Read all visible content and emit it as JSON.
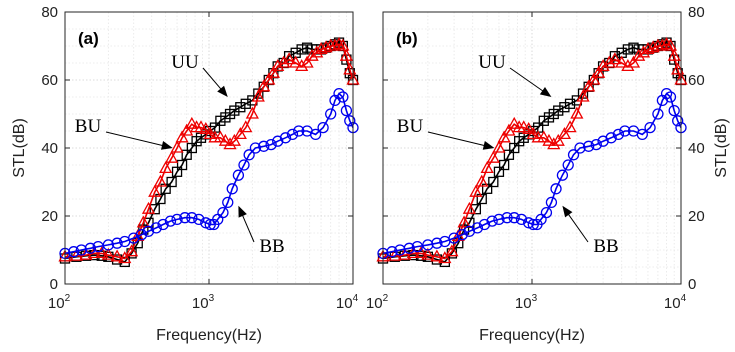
{
  "chart_data": {
    "type": "line",
    "x_scale": "log",
    "xlim": [
      100,
      10000
    ],
    "ylim": [
      0,
      80
    ],
    "grid": true,
    "xlabel": "Frequency(Hz)",
    "ylabel": "STL(dB)",
    "x_ticks": [
      {
        "base": "10",
        "exp": "2"
      },
      {
        "base": "10",
        "exp": "3"
      },
      {
        "base": "10",
        "exp": "4"
      }
    ],
    "y_ticks": [
      "0",
      "20",
      "40",
      "60",
      "80"
    ],
    "colors": {
      "BB": "#0000ee",
      "BU": "#ee0000",
      "UU": "#000000"
    },
    "panels": [
      {
        "label": "(a)",
        "ylabel_side": "left",
        "annotations": [
          {
            "text": "UU",
            "series": "UU",
            "point_at": [
              1350,
              55
            ]
          },
          {
            "text": "BU",
            "series": "BU",
            "point_at": [
              560,
              40
            ]
          },
          {
            "text": "BB",
            "series": "BB",
            "point_at": [
              1600,
              23
            ]
          }
        ],
        "series": [
          {
            "name": "UU",
            "marker": "square",
            "x": [
              100,
              120,
              140,
              160,
              180,
              200,
              230,
              260,
              290,
              320,
              350,
              380,
              420,
              460,
              500,
              550,
              600,
              650,
              700,
              760,
              820,
              880,
              950,
              1020,
              1100,
              1200,
              1300,
              1400,
              1500,
              1650,
              1800,
              2000,
              2200,
              2400,
              2600,
              2800,
              3000,
              3300,
              3600,
              4000,
              4400,
              4800,
              5200,
              5600,
              6000,
              6500,
              7000,
              7500,
              8000,
              8500,
              9000,
              9500,
              10000
            ],
            "y": [
              7.5,
              8,
              8.3,
              8.5,
              8.3,
              8,
              7.2,
              6.5,
              9,
              12,
              16,
              18,
              22,
              25,
              28,
              30,
              33,
              35,
              38,
              40,
              42,
              43,
              44,
              45,
              46,
              48,
              49,
              50,
              51,
              52,
              53,
              54,
              56,
              58,
              60,
              62,
              64,
              65,
              67,
              68,
              69,
              69.5,
              69,
              69,
              69,
              69.5,
              70,
              70.5,
              71,
              70,
              66,
              62,
              60
            ]
          },
          {
            "name": "BU",
            "marker": "triangle",
            "x": [
              100,
              120,
              140,
              160,
              180,
              200,
              230,
              260,
              290,
              320,
              350,
              380,
              420,
              460,
              500,
              550,
              600,
              650,
              700,
              760,
              820,
              880,
              950,
              1020,
              1100,
              1200,
              1300,
              1400,
              1500,
              1650,
              1800,
              2000,
              2200,
              2400,
              2600,
              2800,
              3000,
              3300,
              3600,
              4000,
              4400,
              4800,
              5200,
              5600,
              6000,
              6500,
              7000,
              7500,
              8000,
              8500,
              9000,
              9500,
              10000
            ],
            "y": [
              8,
              8.2,
              8.5,
              9,
              9,
              8.5,
              8,
              7.5,
              9.5,
              14,
              18,
              22,
              27,
              30,
              34,
              37,
              40,
              43,
              45,
              47,
              46,
              46,
              45.5,
              44,
              43,
              43,
              42,
              41,
              42,
              44,
              46,
              50,
              55,
              58,
              60,
              62,
              64,
              65,
              66,
              65,
              64,
              65,
              67,
              68,
              69,
              69.5,
              70,
              70,
              70.5,
              70,
              67,
              63,
              60
            ]
          },
          {
            "name": "BB",
            "marker": "circle",
            "x": [
              100,
              115,
              130,
              150,
              170,
              200,
              230,
              260,
              300,
              340,
              380,
              430,
              480,
              540,
              600,
              680,
              760,
              850,
              950,
              1020,
              1080,
              1150,
              1250,
              1350,
              1450,
              1600,
              1750,
              1900,
              2100,
              2400,
              2700,
              3000,
              3400,
              3800,
              4200,
              4800,
              5500,
              6200,
              7000,
              7500,
              8000,
              8500,
              9000,
              9500,
              10000
            ],
            "y": [
              9,
              9.5,
              10,
              10.5,
              11,
              11.5,
              12,
              12.5,
              13.5,
              14.5,
              15.5,
              16.5,
              17.5,
              18.5,
              19,
              19.5,
              19.5,
              19,
              18,
              17.5,
              17.5,
              19,
              21,
              24,
              28,
              32,
              35,
              38,
              40,
              40.5,
              41,
              42,
              43,
              44,
              45,
              45,
              44,
              46,
              50,
              54,
              56,
              55,
              51,
              48,
              46
            ]
          }
        ]
      },
      {
        "label": "(b)",
        "ylabel_side": "right",
        "annotations": [
          {
            "text": "UU",
            "series": "UU",
            "point_at": [
              1350,
              55
            ]
          },
          {
            "text": "BU",
            "series": "BU",
            "point_at": [
              560,
              40
            ]
          },
          {
            "text": "BB",
            "series": "BB",
            "point_at": [
              1600,
              23
            ]
          }
        ],
        "series": [
          {
            "name": "UU",
            "marker": "square",
            "x": [
              100,
              120,
              140,
              160,
              180,
              200,
              230,
              260,
              290,
              320,
              350,
              380,
              420,
              460,
              500,
              550,
              600,
              650,
              700,
              760,
              820,
              880,
              950,
              1020,
              1100,
              1200,
              1300,
              1400,
              1500,
              1650,
              1800,
              2000,
              2200,
              2400,
              2600,
              2800,
              3000,
              3300,
              3600,
              4000,
              4400,
              4800,
              5200,
              5600,
              6000,
              6500,
              7000,
              7500,
              8000,
              8500,
              9000,
              9500,
              10000
            ],
            "y": [
              7.5,
              8,
              8.3,
              8.5,
              8.3,
              8,
              7.2,
              6.5,
              9,
              12,
              16,
              18,
              22,
              25,
              28,
              30,
              33,
              35,
              38,
              40,
              42,
              43,
              44,
              45,
              46,
              48,
              49,
              50,
              51,
              52,
              53,
              54,
              56,
              58,
              60,
              62,
              64,
              65,
              67,
              68,
              69,
              69.5,
              69,
              69,
              69,
              69.5,
              70,
              70.5,
              71,
              70,
              66,
              62,
              60
            ]
          },
          {
            "name": "BU",
            "marker": "triangle",
            "x": [
              100,
              120,
              140,
              160,
              180,
              200,
              230,
              260,
              290,
              320,
              350,
              380,
              420,
              460,
              500,
              550,
              600,
              650,
              700,
              760,
              820,
              880,
              950,
              1020,
              1100,
              1200,
              1300,
              1400,
              1500,
              1650,
              1800,
              2000,
              2200,
              2400,
              2600,
              2800,
              3000,
              3300,
              3600,
              4000,
              4400,
              4800,
              5200,
              5600,
              6000,
              6500,
              7000,
              7500,
              8000,
              8500,
              9000,
              9500,
              10000
            ],
            "y": [
              8,
              8.2,
              8.5,
              9,
              9,
              8.5,
              8,
              7.5,
              9.5,
              14,
              18,
              22,
              27,
              30,
              34,
              37,
              40,
              43,
              45,
              47,
              46,
              46,
              45.5,
              44,
              43,
              43,
              42,
              41,
              42,
              44,
              46,
              50,
              55,
              58,
              60,
              62,
              64,
              65,
              66,
              65,
              64,
              65,
              67,
              68,
              69,
              69.5,
              70,
              70,
              70.5,
              70,
              67,
              63,
              60
            ]
          },
          {
            "name": "BB",
            "marker": "circle",
            "x": [
              100,
              115,
              130,
              150,
              170,
              200,
              230,
              260,
              300,
              340,
              380,
              430,
              480,
              540,
              600,
              680,
              760,
              850,
              950,
              1020,
              1080,
              1150,
              1250,
              1350,
              1450,
              1600,
              1750,
              1900,
              2100,
              2400,
              2700,
              3000,
              3400,
              3800,
              4200,
              4800,
              5500,
              6200,
              7000,
              7500,
              8000,
              8500,
              9000,
              9500,
              10000
            ],
            "y": [
              9,
              9.5,
              10,
              10.5,
              11,
              11.5,
              12,
              12.5,
              13.5,
              14.5,
              15.5,
              16.5,
              17.5,
              18.5,
              19,
              19.5,
              19.5,
              19,
              18,
              17.5,
              17.5,
              19,
              21,
              24,
              28,
              32,
              35,
              38,
              40,
              40.5,
              41,
              42,
              43,
              44,
              45,
              45,
              44,
              46,
              50,
              54,
              56,
              55,
              51,
              48,
              46
            ]
          }
        ]
      }
    ]
  }
}
